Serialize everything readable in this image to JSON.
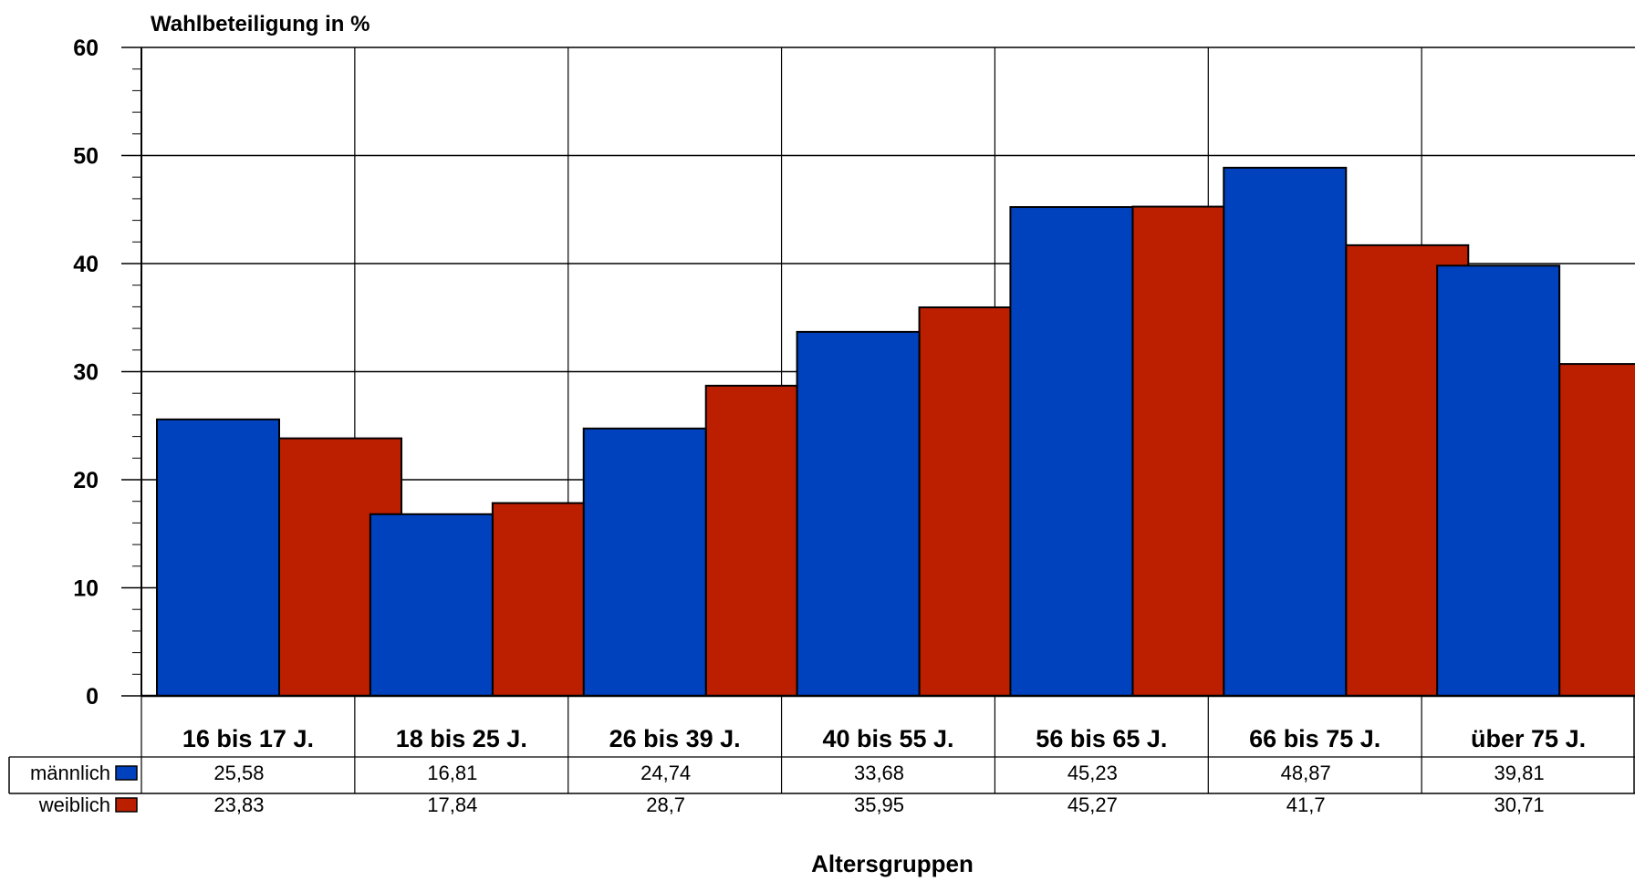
{
  "chart_data": {
    "type": "bar",
    "ylabel": "Wahlbeteiligung in %",
    "xlabel": "Altersgruppen",
    "ylim": [
      0,
      60
    ],
    "yticks": [
      "0",
      "10",
      "20",
      "30",
      "40",
      "50",
      "60"
    ],
    "grid": true,
    "categories": [
      "16 bis 17 J.",
      "18 bis 25 J.",
      "26 bis 39 J.",
      "40 bis 55 J.",
      "56 bis 65 J.",
      "66 bis 75 J.",
      "über 75 J."
    ],
    "series": [
      {
        "name": "männlich",
        "color": "#0041be",
        "values": [
          25.58,
          16.81,
          24.74,
          33.68,
          45.23,
          48.87,
          39.81
        ],
        "labels": [
          "25,58",
          "16,81",
          "24,74",
          "33,68",
          "45,23",
          "48,87",
          "39,81"
        ]
      },
      {
        "name": "weiblich",
        "color": "#bc1e00",
        "values": [
          23.83,
          17.84,
          28.7,
          35.95,
          45.27,
          41.7,
          30.71
        ],
        "labels": [
          "23,83",
          "17,84",
          "28,7",
          "35,95",
          "45,27",
          "41,7",
          "30,71"
        ]
      }
    ],
    "legend": "data-table-left"
  }
}
